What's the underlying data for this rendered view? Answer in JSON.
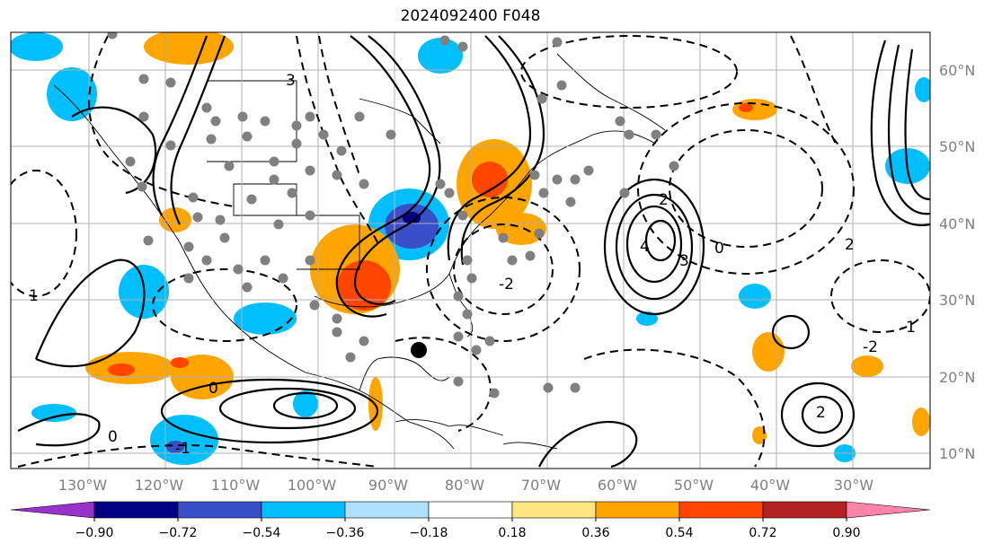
{
  "title": "2024092400 F048",
  "lat_labels": [
    "60°N",
    "50°N",
    "40°N",
    "30°N",
    "20°N",
    "10°N"
  ],
  "lon_labels": [
    "130°W",
    "120°W",
    "110°W",
    "100°W",
    "90°W",
    "80°W",
    "70°W",
    "60°W",
    "50°W",
    "40°W",
    "30°W"
  ],
  "colorbar": {
    "ticks": [
      "−0.90",
      "−0.72",
      "−0.54",
      "−0.36",
      "−0.18",
      "0.18",
      "0.36",
      "0.54",
      "0.72",
      "0.90"
    ],
    "colors": [
      "#9932cc",
      "#000080",
      "#3a4fc7",
      "#00bfff",
      "#b0e0ff",
      "#ffffff",
      "#ffe680",
      "#ffa500",
      "#ff4500",
      "#b22222",
      "#ff82ab"
    ]
  },
  "contour_labels": [
    "2",
    "4",
    "2",
    "-1",
    "3",
    "0",
    "-2",
    "1",
    "0",
    "-1",
    "2",
    "3",
    "0",
    "-2"
  ],
  "colors": {
    "land_line": "#000000",
    "grid": "#b0b0b0",
    "dot": "#808080"
  }
}
